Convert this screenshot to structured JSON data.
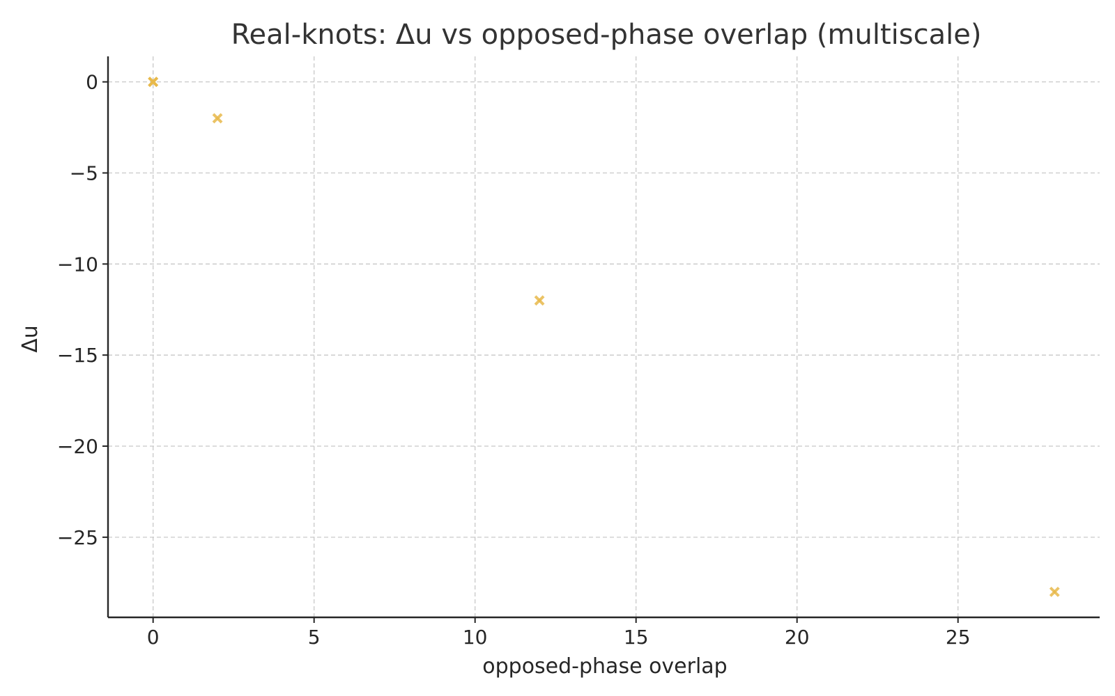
{
  "chart_data": {
    "type": "scatter",
    "title": "Real-knots: Δu vs opposed-phase overlap (multiscale)",
    "xlabel": "opposed-phase overlap",
    "ylabel": "Δu",
    "xlim": [
      -1.4,
      29.4
    ],
    "ylim": [
      -29.4,
      1.4
    ],
    "xticks": [
      0,
      5,
      10,
      15,
      20,
      25
    ],
    "xtick_labels": [
      "0",
      "5",
      "10",
      "15",
      "20",
      "25"
    ],
    "yticks": [
      0,
      -5,
      -10,
      -15,
      -20,
      -25
    ],
    "ytick_labels": [
      "0",
      "−5",
      "−10",
      "−15",
      "−20",
      "−25"
    ],
    "grid": true,
    "marker": "x",
    "marker_color": "#E8B84A",
    "points": [
      {
        "x": 0,
        "y": 0
      },
      {
        "x": 0,
        "y": 0
      },
      {
        "x": 0,
        "y": 0
      },
      {
        "x": 2,
        "y": -2
      },
      {
        "x": 12,
        "y": -12
      },
      {
        "x": 28,
        "y": -28
      }
    ]
  }
}
